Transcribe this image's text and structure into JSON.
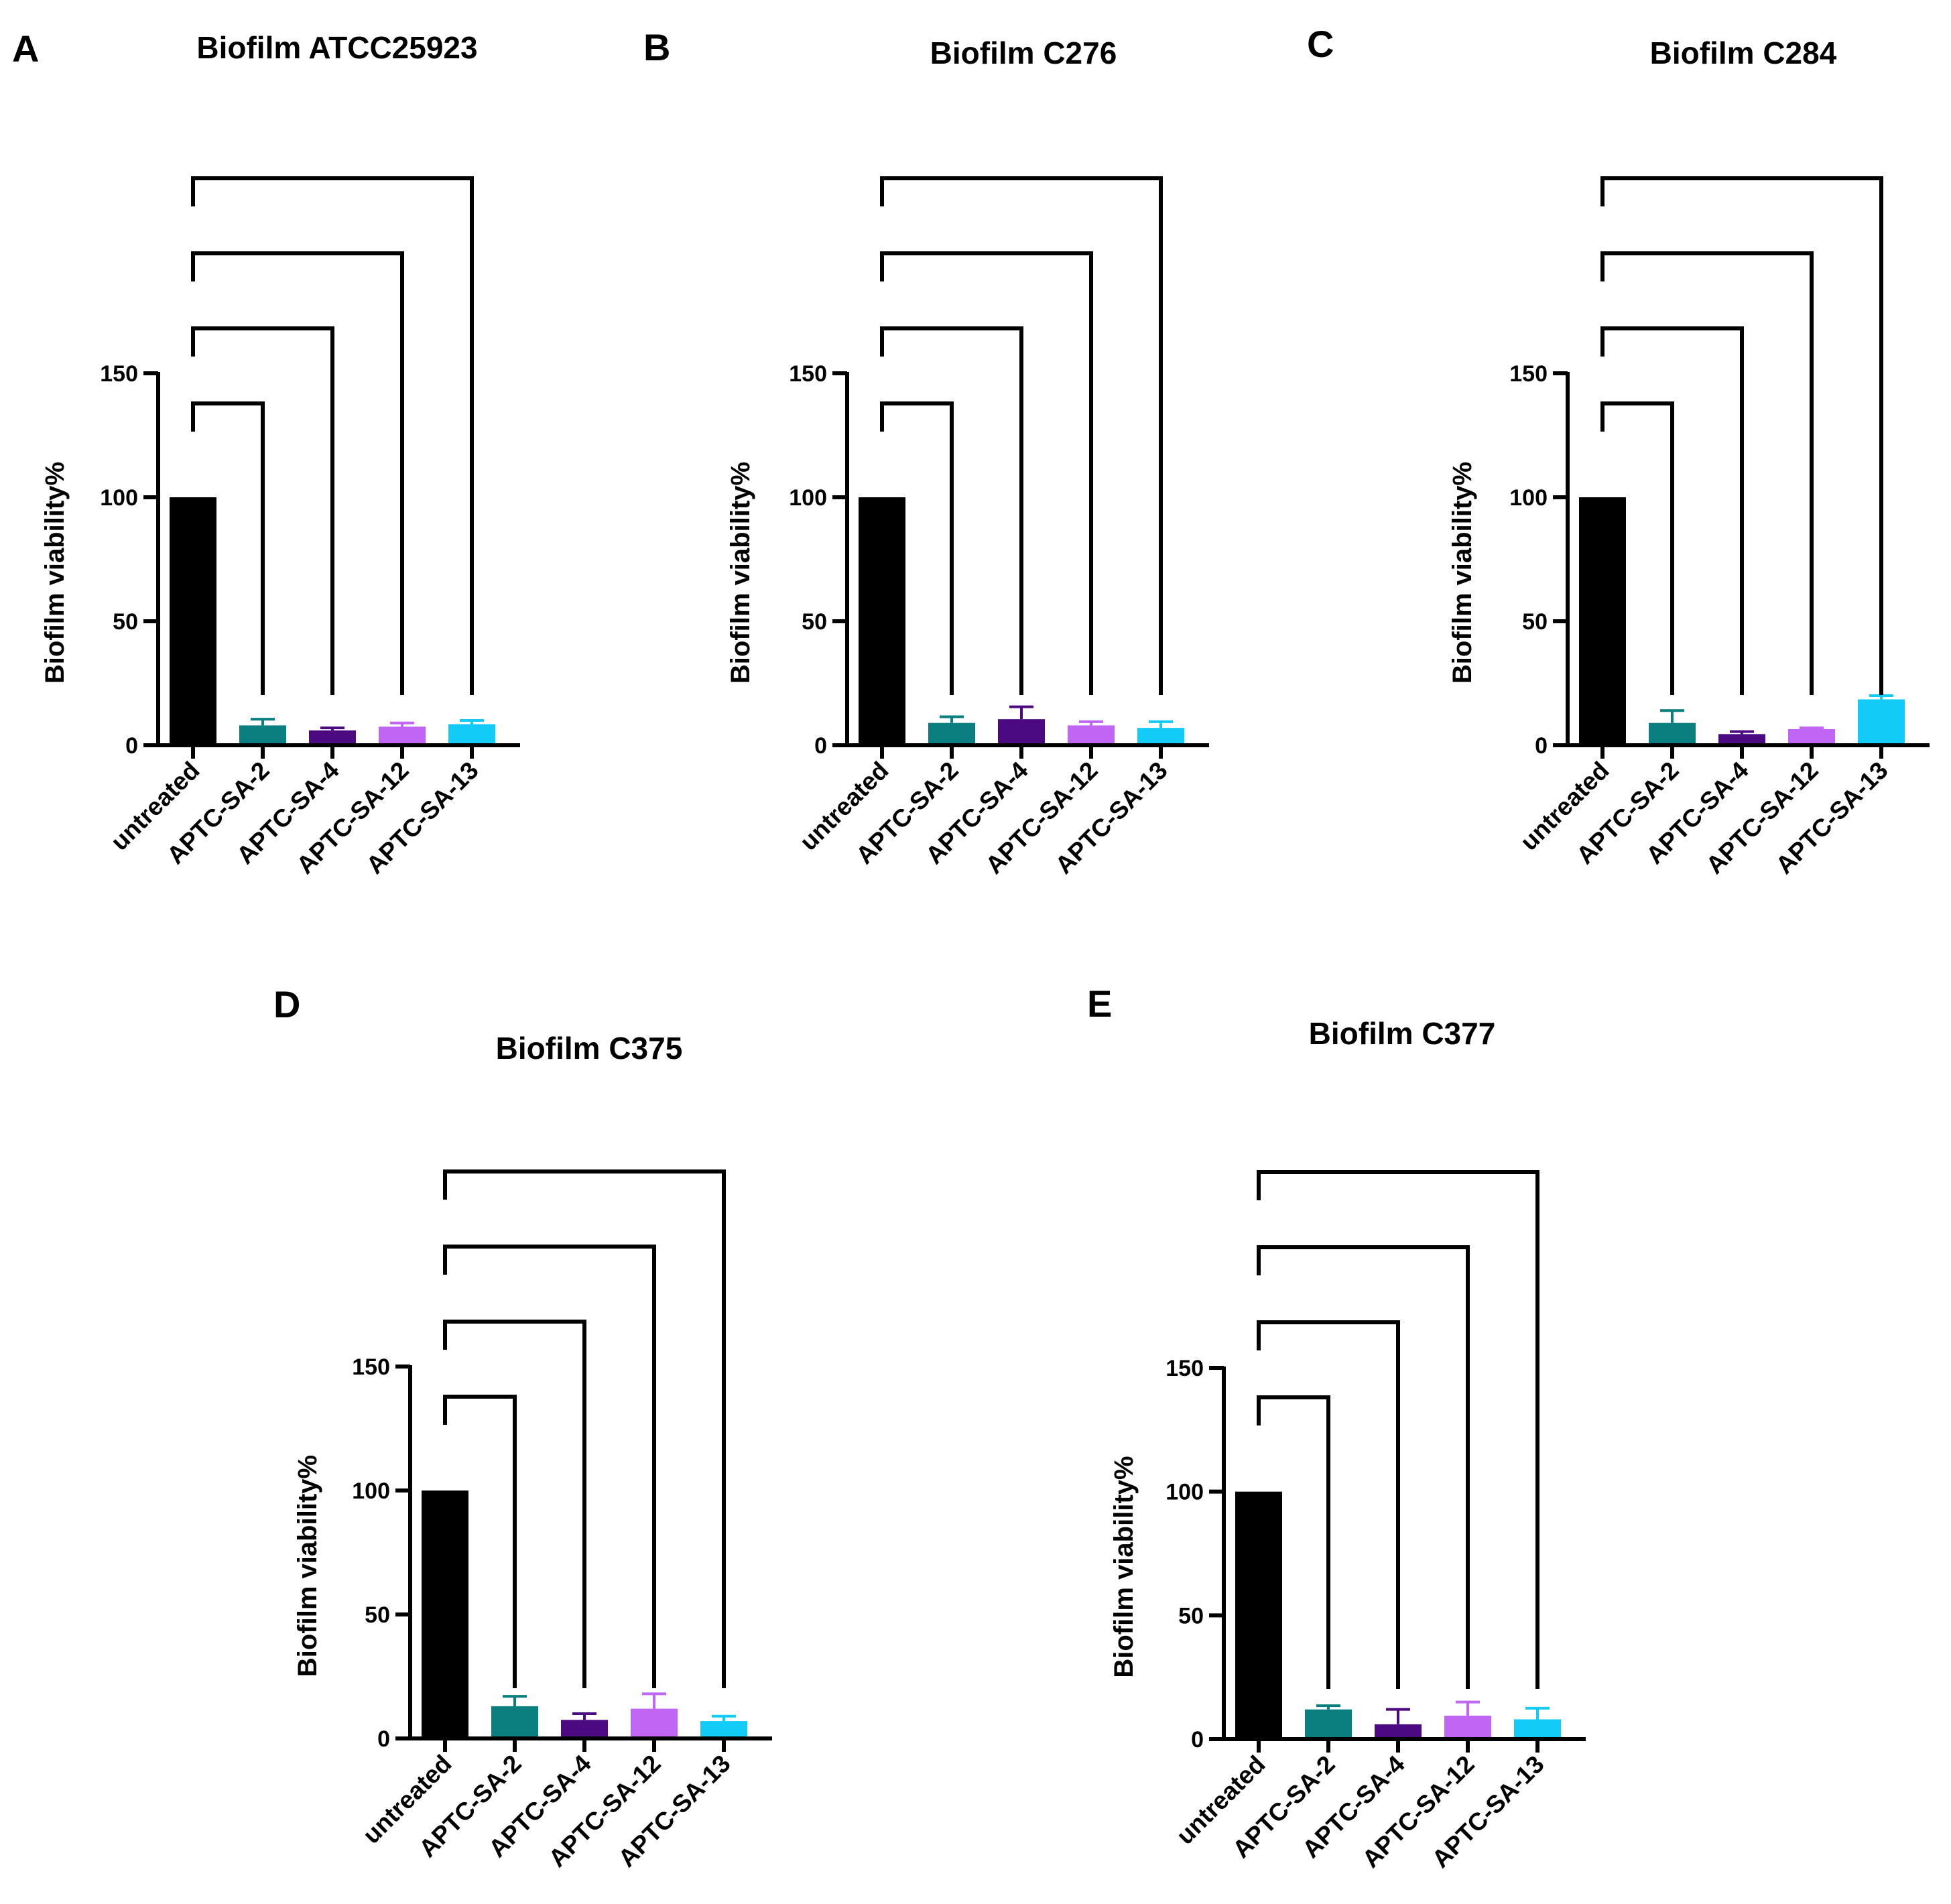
{
  "figure": {
    "colors": {
      "untreated": "#000000",
      "APTC-SA-2": "#0b7f7f",
      "APTC-SA-4": "#4b0a82",
      "APTC-SA-12": "#c165f5",
      "APTC-SA-13": "#12cbf7"
    }
  },
  "chart_data": [
    {
      "panel": "A",
      "type": "bar",
      "title": "Biofilm ATCC25923",
      "ylabel": "Biofilm viability%",
      "xlabel": "",
      "categories": [
        "untreated",
        "APTC-SA-2",
        "APTC-SA-4",
        "APTC-SA-12",
        "APTC-SA-13"
      ],
      "values": [
        100,
        8,
        6,
        7.5,
        8.5
      ],
      "errors": [
        0,
        2.5,
        1,
        1.5,
        1.5
      ],
      "yticks": [
        0,
        50,
        100,
        150
      ],
      "ylim": [
        0,
        150
      ],
      "comparisons": [
        {
          "from": "untreated",
          "to": "APTC-SA-2"
        },
        {
          "from": "untreated",
          "to": "APTC-SA-4"
        },
        {
          "from": "untreated",
          "to": "APTC-SA-12"
        },
        {
          "from": "untreated",
          "to": "APTC-SA-13"
        }
      ]
    },
    {
      "panel": "B",
      "type": "bar",
      "title": "Biofilm C276",
      "ylabel": "Biofilm viability%",
      "xlabel": "",
      "categories": [
        "untreated",
        "APTC-SA-2",
        "APTC-SA-4",
        "APTC-SA-12",
        "APTC-SA-13"
      ],
      "values": [
        100,
        9,
        10.5,
        8,
        7
      ],
      "errors": [
        0,
        2.5,
        5,
        1.5,
        2.5
      ],
      "yticks": [
        0,
        50,
        100,
        150
      ],
      "ylim": [
        0,
        150
      ],
      "comparisons": [
        {
          "from": "untreated",
          "to": "APTC-SA-2"
        },
        {
          "from": "untreated",
          "to": "APTC-SA-4"
        },
        {
          "from": "untreated",
          "to": "APTC-SA-12"
        },
        {
          "from": "untreated",
          "to": "APTC-SA-13"
        }
      ]
    },
    {
      "panel": "C",
      "type": "bar",
      "title": "Biofilm C284",
      "ylabel": "Biofilm viability%",
      "xlabel": "",
      "categories": [
        "untreated",
        "APTC-SA-2",
        "APTC-SA-4",
        "APTC-SA-12",
        "APTC-SA-13"
      ],
      "values": [
        100,
        9,
        4.5,
        6.5,
        18.5
      ],
      "errors": [
        0,
        5,
        1,
        0.5,
        1.5
      ],
      "yticks": [
        0,
        50,
        100,
        150
      ],
      "ylim": [
        0,
        150
      ],
      "comparisons": [
        {
          "from": "untreated",
          "to": "APTC-SA-2"
        },
        {
          "from": "untreated",
          "to": "APTC-SA-4"
        },
        {
          "from": "untreated",
          "to": "APTC-SA-12"
        },
        {
          "from": "untreated",
          "to": "APTC-SA-13"
        }
      ]
    },
    {
      "panel": "D",
      "type": "bar",
      "title": "Biofilm C375",
      "ylabel": "Biofilm viability%",
      "xlabel": "",
      "categories": [
        "untreated",
        "APTC-SA-2",
        "APTC-SA-4",
        "APTC-SA-12",
        "APTC-SA-13"
      ],
      "values": [
        100,
        13,
        7.5,
        12,
        7
      ],
      "errors": [
        0,
        4,
        2.5,
        6,
        2
      ],
      "yticks": [
        0,
        50,
        100,
        150
      ],
      "ylim": [
        0,
        150
      ],
      "comparisons": [
        {
          "from": "untreated",
          "to": "APTC-SA-2"
        },
        {
          "from": "untreated",
          "to": "APTC-SA-4"
        },
        {
          "from": "untreated",
          "to": "APTC-SA-12"
        },
        {
          "from": "untreated",
          "to": "APTC-SA-13"
        }
      ]
    },
    {
      "panel": "E",
      "type": "bar",
      "title": "Biofilm C377",
      "ylabel": "Biofilm viability%",
      "xlabel": "",
      "categories": [
        "untreated",
        "APTC-SA-2",
        "APTC-SA-4",
        "APTC-SA-12",
        "APTC-SA-13"
      ],
      "values": [
        100,
        12,
        6,
        9.5,
        8
      ],
      "errors": [
        0,
        1.5,
        6,
        5.5,
        4.5
      ],
      "yticks": [
        0,
        50,
        100,
        150
      ],
      "ylim": [
        0,
        150
      ],
      "comparisons": [
        {
          "from": "untreated",
          "to": "APTC-SA-2"
        },
        {
          "from": "untreated",
          "to": "APTC-SA-4"
        },
        {
          "from": "untreated",
          "to": "APTC-SA-12"
        },
        {
          "from": "untreated",
          "to": "APTC-SA-13"
        }
      ]
    }
  ]
}
